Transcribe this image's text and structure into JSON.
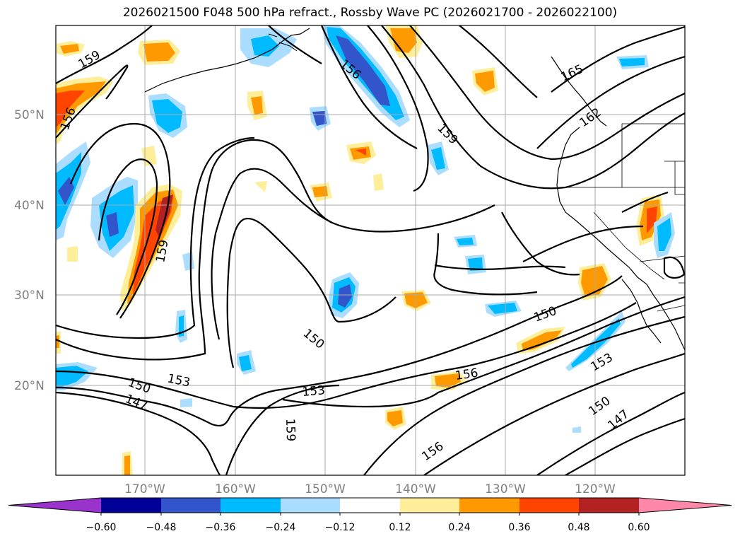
{
  "title": "2026021500 F048 500 hPa refract., Rossby Wave PC (2026021700 - 2026022100)",
  "lat_labels": [
    "50°N",
    "40°N",
    "30°N",
    "20°N"
  ],
  "lon_labels": [
    "170°W",
    "160°W",
    "150°W",
    "140°W",
    "130°W",
    "120°W"
  ],
  "contour_labels": [
    "159",
    "156",
    "156",
    "165",
    "162",
    "159",
    "159",
    "150",
    "150",
    "153",
    "150",
    "147",
    "153",
    "156",
    "159",
    "156",
    "153",
    "150",
    "147"
  ],
  "colorbar": {
    "colors": [
      "#9933cc",
      "#000099",
      "#3355cc",
      "#00bbff",
      "#aaddff",
      "#ffffff",
      "#ffee99",
      "#ff9900",
      "#ff4400",
      "#b22222",
      "#ff88aa"
    ],
    "ticks": [
      "−0.60",
      "−0.48",
      "−0.36",
      "−0.24",
      "−0.12",
      "0.12",
      "0.24",
      "0.36",
      "0.48",
      "0.60"
    ]
  }
}
